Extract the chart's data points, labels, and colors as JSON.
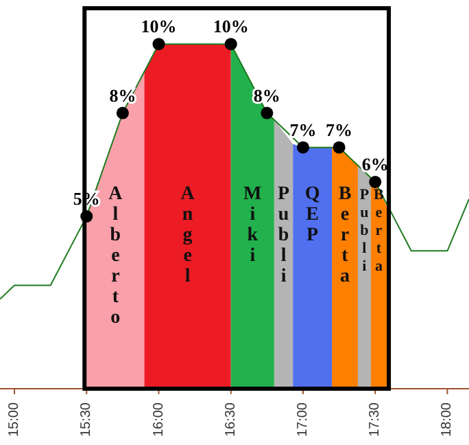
{
  "chart_data": {
    "type": "area",
    "xlim": [
      14.9,
      18.15
    ],
    "ylim": [
      0,
      11
    ],
    "xticks": [
      {
        "value": 15,
        "label": "15:00"
      },
      {
        "value": 15.5,
        "label": "15:30"
      },
      {
        "value": 16,
        "label": "16:00"
      },
      {
        "value": 16.5,
        "label": "16:30"
      },
      {
        "value": 17,
        "label": "17:00"
      },
      {
        "value": 17.5,
        "label": "17:30"
      },
      {
        "value": 18,
        "label": "18:00"
      }
    ],
    "tick_labels": "x",
    "grid": false,
    "series": [
      {
        "name": "Alberto",
        "color": "#f9a0aa",
        "x": [
          15.5,
          15.75,
          15.9
        ],
        "values": [
          5,
          8,
          9.2
        ]
      },
      {
        "name": "Angel",
        "color": "#ed1c24",
        "x": [
          15.9,
          16,
          16.5
        ],
        "values": [
          9.2,
          10,
          10
        ]
      },
      {
        "name": "Miki",
        "color": "#22b14c",
        "x": [
          16.5,
          16.75,
          16.8
        ],
        "values": [
          10,
          8,
          7.8
        ]
      },
      {
        "name": "Publi",
        "color": "#b4b4b4",
        "x": [
          16.8,
          16.93
        ],
        "values": [
          7.8,
          7.1
        ]
      },
      {
        "name": "QEP",
        "color": "#5070f0",
        "x": [
          16.93,
          17,
          17.2
        ],
        "values": [
          7.1,
          7,
          7
        ]
      },
      {
        "name": "Berta",
        "color": "#ff7f00",
        "x": [
          17.2,
          17.25,
          17.38
        ],
        "values": [
          7,
          7,
          6.5
        ]
      },
      {
        "name": "Publi",
        "color": "#b4b4b4",
        "x": [
          17.38,
          17.47
        ],
        "values": [
          6.5,
          6.1
        ]
      },
      {
        "name": "Berta",
        "color": "#ff7f00",
        "x": [
          17.47,
          17.5,
          17.58
        ],
        "values": [
          6.1,
          6,
          5.3
        ]
      },
      {
        "type": "line",
        "color": "#1e7b1e",
        "marker": "none",
        "x": [
          14.9,
          15,
          15.25,
          15.5,
          15.75,
          16,
          16.5,
          16.75,
          17,
          17.25,
          17.5,
          17.75,
          18,
          18.15
        ],
        "values": [
          2.6,
          3,
          3,
          5,
          8,
          10,
          10,
          8,
          7,
          7,
          6,
          4,
          4,
          5.5
        ]
      },
      {
        "type": "scatter",
        "color": "#000000",
        "marker": "circle",
        "x": [
          15.5,
          15.75,
          16,
          16.5,
          16.75,
          17,
          17.25,
          17.5
        ],
        "values": [
          5,
          8,
          10,
          10,
          8,
          7,
          7,
          6
        ],
        "value_labels": [
          "5%",
          "8%",
          "10%",
          "10%",
          "8%",
          "7%",
          "7%",
          "6%"
        ]
      }
    ]
  }
}
